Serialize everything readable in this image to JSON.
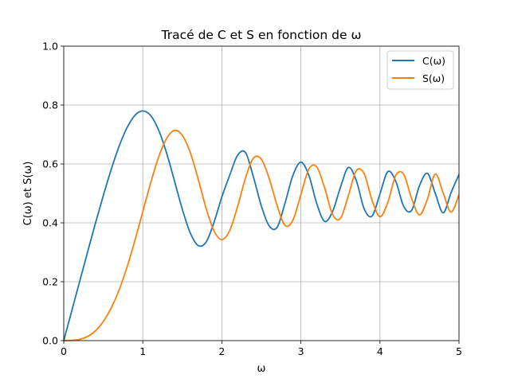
{
  "chart_data": {
    "type": "line",
    "title": "Tracé de C et S en fonction de ω",
    "xlabel": "ω",
    "ylabel": "C(ω) et S(ω)",
    "xlim": [
      0,
      5
    ],
    "ylim": [
      0,
      1
    ],
    "xticks": [
      "0",
      "1",
      "2",
      "3",
      "4",
      "5"
    ],
    "yticks": [
      "0.0",
      "0.2",
      "0.4",
      "0.6",
      "0.8",
      "1.0"
    ],
    "grid": true,
    "legend_position": "top-right",
    "series": [
      {
        "name": "C(ω)",
        "color": "#1f77b4",
        "x": [
          0,
          0.1,
          0.2,
          0.3,
          0.4,
          0.5,
          0.6,
          0.7,
          0.8,
          0.9,
          1.0,
          1.1,
          1.2,
          1.3,
          1.4,
          1.5,
          1.6,
          1.7,
          1.8,
          1.9,
          2.0,
          2.1,
          2.2,
          2.3,
          2.4,
          2.5,
          2.6,
          2.7,
          2.8,
          2.9,
          3.0,
          3.1,
          3.2,
          3.3,
          3.4,
          3.5,
          3.6,
          3.7,
          3.8,
          3.9,
          4.0,
          4.1,
          4.2,
          4.3,
          4.4,
          4.5,
          4.6,
          4.7,
          4.8,
          4.9,
          5.0
        ],
        "y": [
          0.0,
          0.1,
          0.2,
          0.299,
          0.398,
          0.492,
          0.581,
          0.66,
          0.723,
          0.765,
          0.78,
          0.764,
          0.715,
          0.638,
          0.543,
          0.446,
          0.366,
          0.323,
          0.334,
          0.401,
          0.488,
          0.562,
          0.63,
          0.638,
          0.555,
          0.457,
          0.389,
          0.385,
          0.468,
          0.562,
          0.606,
          0.562,
          0.466,
          0.405,
          0.438,
          0.52,
          0.588,
          0.544,
          0.448,
          0.423,
          0.498,
          0.574,
          0.541,
          0.456,
          0.442,
          0.526,
          0.568,
          0.5,
          0.434,
          0.503,
          0.564
        ]
      },
      {
        "name": "S(ω)",
        "color": "#ff7f0e",
        "x": [
          0,
          0.1,
          0.2,
          0.3,
          0.4,
          0.5,
          0.6,
          0.7,
          0.8,
          0.9,
          1.0,
          1.1,
          1.2,
          1.3,
          1.4,
          1.5,
          1.6,
          1.7,
          1.8,
          1.9,
          2.0,
          2.1,
          2.2,
          2.3,
          2.4,
          2.5,
          2.6,
          2.7,
          2.8,
          2.9,
          3.0,
          3.1,
          3.2,
          3.3,
          3.4,
          3.5,
          3.6,
          3.7,
          3.8,
          3.9,
          4.0,
          4.1,
          4.2,
          4.3,
          4.4,
          4.5,
          4.6,
          4.7,
          4.8,
          4.9,
          5.0
        ],
        "y": [
          0.0,
          0.001,
          0.004,
          0.014,
          0.033,
          0.065,
          0.111,
          0.172,
          0.249,
          0.34,
          0.438,
          0.536,
          0.623,
          0.686,
          0.714,
          0.697,
          0.639,
          0.549,
          0.45,
          0.373,
          0.343,
          0.374,
          0.456,
          0.553,
          0.62,
          0.616,
          0.55,
          0.458,
          0.391,
          0.41,
          0.496,
          0.582,
          0.59,
          0.519,
          0.429,
          0.415,
          0.492,
          0.577,
          0.567,
          0.477,
          0.421,
          0.47,
          0.561,
          0.565,
          0.483,
          0.427,
          0.48,
          0.566,
          0.501,
          0.436,
          0.496
        ]
      }
    ]
  }
}
